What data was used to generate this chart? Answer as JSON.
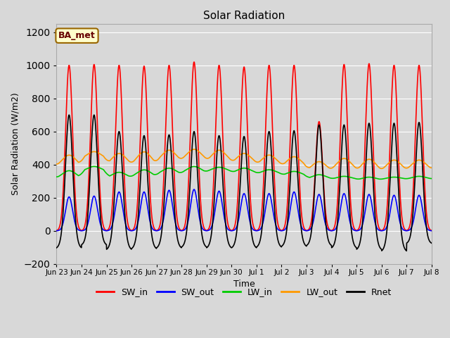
{
  "title": "Solar Radiation",
  "xlabel": "Time",
  "ylabel": "Solar Radiation (W/m2)",
  "ylim": [
    -200,
    1250
  ],
  "yticks": [
    -200,
    0,
    200,
    400,
    600,
    800,
    1000,
    1200
  ],
  "background_color": "#d8d8d8",
  "plot_bg_color": "#d8d8d8",
  "grid_color": "white",
  "annotation_text": "BA_met",
  "annotation_bg": "#ffffcc",
  "annotation_border": "#996600",
  "lines": {
    "SW_in": {
      "color": "#ff0000",
      "lw": 1.2
    },
    "SW_out": {
      "color": "#0000ff",
      "lw": 1.2
    },
    "LW_in": {
      "color": "#00cc00",
      "lw": 1.2
    },
    "LW_out": {
      "color": "#ff9900",
      "lw": 1.2
    },
    "Rnet": {
      "color": "#000000",
      "lw": 1.2
    }
  },
  "n_days": 15,
  "SW_in_peaks": [
    1000,
    1005,
    1000,
    995,
    1000,
    1020,
    1000,
    990,
    1000,
    1000,
    660,
    1005,
    1010,
    1000,
    1000
  ],
  "SW_out_peaks": [
    205,
    210,
    235,
    235,
    245,
    250,
    240,
    225,
    225,
    235,
    220,
    225,
    220,
    215,
    215
  ],
  "LW_in_base": [
    310,
    355,
    315,
    320,
    335,
    345,
    355,
    345,
    340,
    330,
    310,
    310,
    305,
    310,
    310
  ],
  "LW_in_peak": [
    365,
    390,
    355,
    370,
    380,
    390,
    385,
    380,
    370,
    360,
    340,
    330,
    325,
    325,
    330
  ],
  "LW_out_base": [
    380,
    430,
    390,
    390,
    410,
    420,
    410,
    400,
    390,
    380,
    355,
    360,
    350,
    355,
    360
  ],
  "LW_out_peak": [
    460,
    480,
    470,
    480,
    490,
    495,
    490,
    470,
    460,
    450,
    420,
    440,
    435,
    430,
    430
  ],
  "Rnet_peaks": [
    700,
    700,
    600,
    575,
    580,
    600,
    575,
    570,
    600,
    605,
    640,
    640,
    650,
    650,
    655
  ],
  "Rnet_night": [
    -110,
    -90,
    -120,
    -115,
    -110,
    -105,
    -110,
    -110,
    -105,
    -100,
    -95,
    -110,
    -120,
    -130,
    -80
  ],
  "tick_labels": [
    "Jun 23",
    "Jun 24",
    "Jun 25",
    "Jun 26",
    "Jun 27",
    "Jun 28",
    "Jun 29",
    "Jun 30",
    "Jul 1",
    "Jul 2",
    "Jul 3",
    "Jul 4",
    "Jul 5",
    "Jul 6",
    "Jul 7",
    "Jul 8"
  ],
  "legend_entries": [
    "SW_in",
    "SW_out",
    "LW_in",
    "LW_out",
    "Rnet"
  ],
  "legend_colors": [
    "#ff0000",
    "#0000ff",
    "#00cc00",
    "#ff9900",
    "#000000"
  ]
}
